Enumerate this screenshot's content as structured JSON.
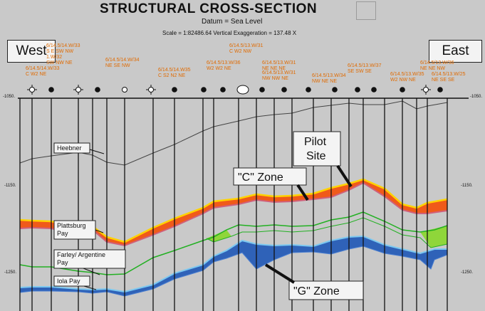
{
  "title": "STRUCTURAL CROSS-SECTION",
  "datum": "Datum = Sea Level",
  "scale": "Scale = 1:82486.64   Vertical Exaggeration = 137.48 X",
  "directions": {
    "west": "West",
    "east": "East"
  },
  "depth_labels": {
    "top": "-1050.",
    "mid": "-1150.",
    "bottom": "-1250."
  },
  "wells": [
    {
      "lines": [
        "6/14.5/14.W/33",
        "C W2 NE"
      ]
    },
    {
      "lines": [
        "6/14.5/14.W/33",
        "S E SW NW",
        "1.W/32",
        "SW NW NE"
      ]
    },
    {
      "lines": [
        "6/14.5/14.W/34",
        "NE SE NW"
      ]
    },
    {
      "lines": [
        "6/14.5/14.W35",
        "C S2 N2 NE"
      ]
    },
    {
      "lines": [
        "6/14.5/13.W/36",
        "W2 W2 NE"
      ]
    },
    {
      "lines": [
        "6/14.5/13.W/31",
        "C W2 NW"
      ]
    },
    {
      "lines": [
        "6/14.5/13.W/31",
        "NE NE NE"
      ]
    },
    {
      "lines": [
        "6/14.5/13.W/31",
        "NW NW NE"
      ]
    },
    {
      "lines": [
        "6/14.5/13.W/34",
        "NW NE NE"
      ]
    },
    {
      "lines": [
        "6/14.5/13.W/37",
        "SE SW SE"
      ]
    },
    {
      "lines": [
        "6/14.5/13.W/35",
        "W2 NW NE"
      ]
    },
    {
      "lines": [
        "6/14.5/13.W/36",
        "NE NE NW"
      ]
    },
    {
      "lines": [
        "6/14.5/13.W/25",
        "NE SE SE"
      ]
    }
  ],
  "horizons": {
    "heebner": "Heebner",
    "plattsburg": [
      "Plattsburg",
      "Pay"
    ],
    "farley": [
      "Farley/ Argentine",
      "Pay"
    ],
    "iola": "Iola Pay"
  },
  "callouts": {
    "c_zone": "\"C\" Zone",
    "pilot_site": [
      "Pilot",
      "Site"
    ],
    "g_zone": "\"G\" Zone"
  },
  "colors": {
    "background": "#c9c9c9",
    "heebner": "#444444",
    "c_zone_fill": "#f05a1a",
    "c_zone_top": "#ffd200",
    "c_zone_base": "#d0607a",
    "farley": "#22b022",
    "farley_fill": "#8fd63a",
    "g_zone_fill": "#2f62b8",
    "iola": "#7cc8f0",
    "well_text": "#e06a00"
  }
}
